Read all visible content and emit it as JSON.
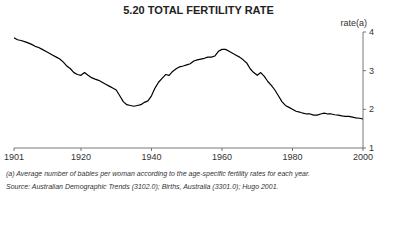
{
  "chart_data": {
    "type": "line",
    "title": "5.20   TOTAL FERTILITY RATE",
    "y_label": "rate(a)",
    "annotations": [
      "(a) Average number of babies per woman according to the age-specific fertility rates for each year.",
      "Source:  Australian Demographic Trends (3102.0); Births, Australia (3301.0); Hugo 2001."
    ],
    "color": "#000000",
    "xlim": [
      1901,
      2000
    ],
    "ylim": [
      1,
      4
    ],
    "xticks": [
      1901,
      1920,
      1940,
      1960,
      1980,
      2000
    ],
    "yticks": [
      1,
      2,
      3,
      4
    ],
    "grid": false,
    "x": [
      1901,
      1902,
      1903,
      1904,
      1905,
      1906,
      1907,
      1908,
      1909,
      1910,
      1911,
      1912,
      1913,
      1914,
      1915,
      1916,
      1917,
      1918,
      1919,
      1920,
      1921,
      1922,
      1923,
      1924,
      1925,
      1926,
      1927,
      1928,
      1929,
      1930,
      1931,
      1932,
      1933,
      1934,
      1935,
      1936,
      1937,
      1938,
      1939,
      1940,
      1941,
      1942,
      1943,
      1944,
      1945,
      1946,
      1947,
      1948,
      1949,
      1950,
      1951,
      1952,
      1953,
      1954,
      1955,
      1956,
      1957,
      1958,
      1959,
      1960,
      1961,
      1962,
      1963,
      1964,
      1965,
      1966,
      1967,
      1968,
      1969,
      1970,
      1971,
      1972,
      1973,
      1974,
      1975,
      1976,
      1977,
      1978,
      1979,
      1980,
      1981,
      1982,
      1983,
      1984,
      1985,
      1986,
      1987,
      1988,
      1989,
      1990,
      1991,
      1992,
      1993,
      1994,
      1995,
      1996,
      1997,
      1998,
      1999,
      2000
    ],
    "values": [
      3.85,
      3.8,
      3.78,
      3.75,
      3.72,
      3.68,
      3.63,
      3.6,
      3.55,
      3.5,
      3.45,
      3.4,
      3.35,
      3.3,
      3.22,
      3.12,
      3.05,
      2.95,
      2.9,
      2.88,
      2.95,
      2.88,
      2.82,
      2.78,
      2.75,
      2.7,
      2.65,
      2.6,
      2.55,
      2.5,
      2.35,
      2.2,
      2.12,
      2.1,
      2.08,
      2.1,
      2.12,
      2.18,
      2.22,
      2.35,
      2.55,
      2.7,
      2.8,
      2.9,
      2.88,
      2.98,
      3.05,
      3.1,
      3.12,
      3.15,
      3.18,
      3.25,
      3.28,
      3.3,
      3.32,
      3.35,
      3.35,
      3.38,
      3.5,
      3.55,
      3.55,
      3.5,
      3.45,
      3.4,
      3.35,
      3.28,
      3.2,
      3.05,
      2.95,
      2.88,
      2.95,
      2.85,
      2.72,
      2.62,
      2.5,
      2.35,
      2.2,
      2.1,
      2.05,
      2.0,
      1.95,
      1.93,
      1.9,
      1.88,
      1.88,
      1.85,
      1.85,
      1.88,
      1.9,
      1.88,
      1.88,
      1.86,
      1.85,
      1.83,
      1.82,
      1.82,
      1.8,
      1.78,
      1.77,
      1.75
    ]
  }
}
